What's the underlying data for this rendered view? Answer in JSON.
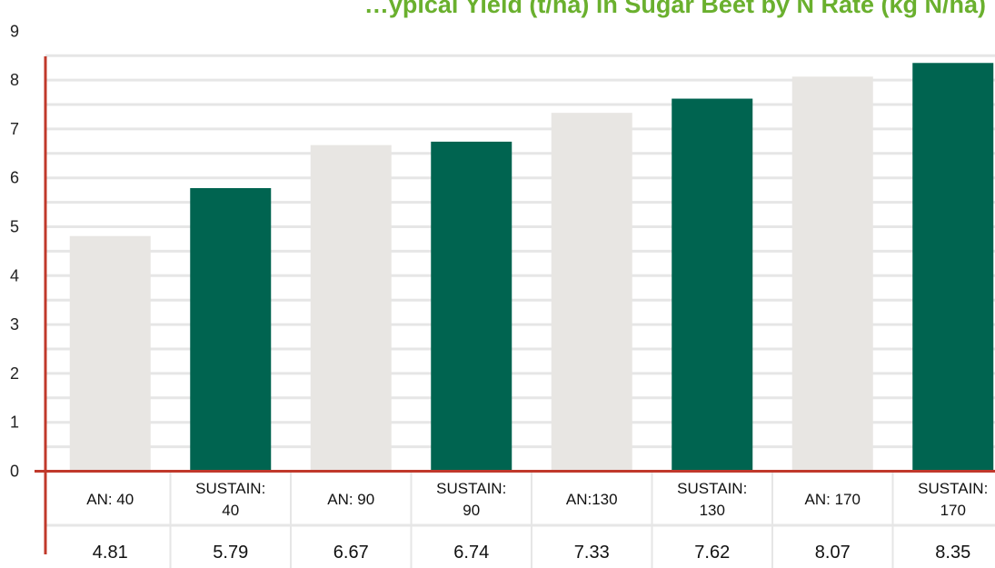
{
  "chart_data": {
    "type": "bar",
    "title": "…ypical Yield (t/ha) in Sugar Beet by N Rate (kg N/ha)",
    "categories": [
      [
        "AN: 40"
      ],
      [
        "SUSTAIN:",
        "40"
      ],
      [
        "AN: 90"
      ],
      [
        "SUSTAIN:",
        "90"
      ],
      [
        "AN:130"
      ],
      [
        "SUSTAIN:",
        "130"
      ],
      [
        "AN: 170"
      ],
      [
        "SUSTAIN:",
        "170"
      ]
    ],
    "values": [
      4.81,
      5.79,
      6.67,
      6.74,
      7.33,
      7.62,
      8.07,
      8.35
    ],
    "value_labels": [
      "4.81",
      "5.79",
      "6.67",
      "6.74",
      "7.33",
      "7.62",
      "8.07",
      "8.35"
    ],
    "yticks": [
      "0",
      "1",
      "2",
      "3",
      "4",
      "5",
      "6",
      "7",
      "8",
      "9"
    ],
    "ylim": [
      0,
      8.5
    ],
    "grid": true,
    "colors": {
      "an_bar": "#e8e6e3",
      "sustain_bar": "#006450",
      "axis": "#c0392b",
      "grid": "#e6e6e6",
      "title": "#6ab02e"
    }
  }
}
